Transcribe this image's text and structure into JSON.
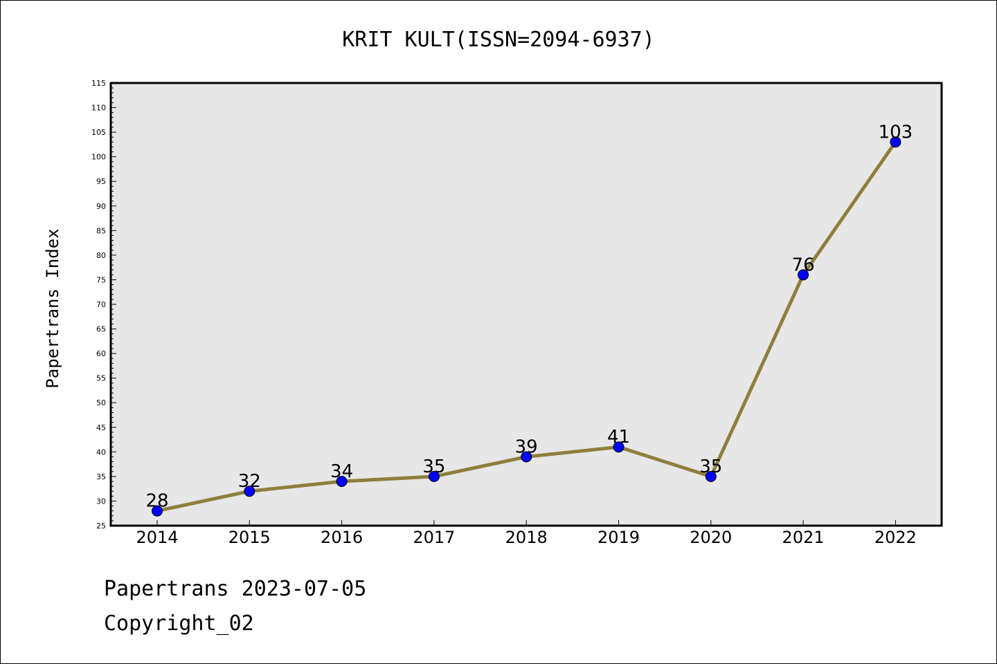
{
  "chart_data": {
    "type": "line",
    "title": "KRIT KULT(ISSN=2094-6937)",
    "xlabel": "",
    "ylabel": "Papertrans Index",
    "categories": [
      "2014",
      "2015",
      "2016",
      "2017",
      "2018",
      "2019",
      "2020",
      "2021",
      "2022"
    ],
    "series": [
      {
        "values": [
          28,
          32,
          34,
          35,
          39,
          41,
          35,
          76,
          103
        ]
      }
    ],
    "ylim": [
      25,
      115
    ],
    "y_ticks": [
      25,
      30,
      35,
      40,
      45,
      50,
      55,
      60,
      65,
      70,
      75,
      80,
      85,
      90,
      95,
      100,
      105,
      110,
      115
    ],
    "grid": false,
    "legend": "none",
    "colors": {
      "line": "#8f7f3c",
      "marker": "#0000ff",
      "plot_background": "#e7e7e7"
    }
  },
  "footer": {
    "date_line": "Papertrans 2023-07-05",
    "copyright_line": "Copyright_02"
  }
}
